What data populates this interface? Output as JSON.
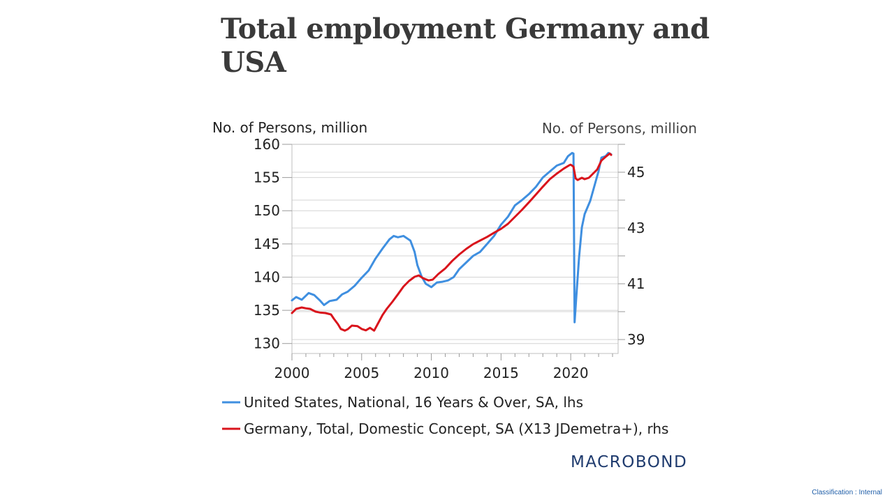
{
  "slide": {
    "title": "Total employment Germany and USA",
    "classification": "Classification : Internal"
  },
  "brand": {
    "name": "MACROBOND",
    "color": "#1f3b6e",
    "icon": "macrobond-logo"
  },
  "chart_data": {
    "type": "line",
    "title": "",
    "xlabel": "",
    "ylabel_left": "No. of Persons, million",
    "ylabel_right": "No. of Persons, million",
    "xlim": [
      2000,
      2023.4
    ],
    "ylim_left": [
      128.5,
      160
    ],
    "ylim_right": [
      38.5,
      46
    ],
    "x_ticks": [
      2000,
      2005,
      2010,
      2015,
      2020
    ],
    "y_ticks_left": [
      130,
      135,
      140,
      145,
      150,
      155,
      160
    ],
    "y_ticks_right": [
      39,
      41,
      43,
      45
    ],
    "grid": true,
    "legend_position": "bottom",
    "series": [
      {
        "name": "United States, National, 16 Years & Over, SA, lhs",
        "axis": "left",
        "color": "#3f8fe0",
        "points": [
          [
            2000.0,
            136.5
          ],
          [
            2000.3,
            137.0
          ],
          [
            2000.7,
            136.6
          ],
          [
            2001.2,
            137.6
          ],
          [
            2001.6,
            137.3
          ],
          [
            2002.0,
            136.5
          ],
          [
            2002.3,
            135.8
          ],
          [
            2002.7,
            136.4
          ],
          [
            2003.2,
            136.6
          ],
          [
            2003.6,
            137.4
          ],
          [
            2004.0,
            137.8
          ],
          [
            2004.5,
            138.7
          ],
          [
            2005.0,
            139.9
          ],
          [
            2005.5,
            141.0
          ],
          [
            2006.0,
            142.8
          ],
          [
            2006.5,
            144.3
          ],
          [
            2007.0,
            145.7
          ],
          [
            2007.3,
            146.2
          ],
          [
            2007.6,
            146.0
          ],
          [
            2008.0,
            146.2
          ],
          [
            2008.5,
            145.5
          ],
          [
            2008.8,
            143.8
          ],
          [
            2009.0,
            141.8
          ],
          [
            2009.3,
            140.1
          ],
          [
            2009.6,
            139.0
          ],
          [
            2010.0,
            138.5
          ],
          [
            2010.4,
            139.2
          ],
          [
            2010.8,
            139.3
          ],
          [
            2011.2,
            139.5
          ],
          [
            2011.6,
            140.0
          ],
          [
            2012.0,
            141.2
          ],
          [
            2012.5,
            142.2
          ],
          [
            2013.0,
            143.2
          ],
          [
            2013.5,
            143.8
          ],
          [
            2014.0,
            145.0
          ],
          [
            2014.5,
            146.2
          ],
          [
            2015.0,
            147.9
          ],
          [
            2015.5,
            149.1
          ],
          [
            2016.0,
            150.8
          ],
          [
            2016.5,
            151.6
          ],
          [
            2017.0,
            152.5
          ],
          [
            2017.5,
            153.6
          ],
          [
            2018.0,
            155.0
          ],
          [
            2018.5,
            155.9
          ],
          [
            2019.0,
            156.8
          ],
          [
            2019.5,
            157.2
          ],
          [
            2019.8,
            158.2
          ],
          [
            2020.1,
            158.7
          ],
          [
            2020.2,
            158.6
          ],
          [
            2020.28,
            133.2
          ],
          [
            2020.4,
            137.0
          ],
          [
            2020.6,
            143.0
          ],
          [
            2020.8,
            147.5
          ],
          [
            2021.0,
            149.5
          ],
          [
            2021.4,
            151.5
          ],
          [
            2021.8,
            154.5
          ],
          [
            2022.0,
            156.0
          ],
          [
            2022.2,
            158.0
          ],
          [
            2022.5,
            158.2
          ],
          [
            2022.7,
            158.7
          ],
          [
            2022.9,
            158.5
          ]
        ]
      },
      {
        "name": "Germany, Total, Domestic Concept, SA (X13 JDemetra+), rhs",
        "axis": "right",
        "color": "#d9141c",
        "points": [
          [
            2000.0,
            39.95
          ],
          [
            2000.3,
            40.1
          ],
          [
            2000.7,
            40.15
          ],
          [
            2001.0,
            40.12
          ],
          [
            2001.3,
            40.1
          ],
          [
            2001.7,
            40.0
          ],
          [
            2002.0,
            39.97
          ],
          [
            2002.4,
            39.95
          ],
          [
            2002.8,
            39.9
          ],
          [
            2003.0,
            39.75
          ],
          [
            2003.3,
            39.55
          ],
          [
            2003.5,
            39.38
          ],
          [
            2003.8,
            39.32
          ],
          [
            2004.0,
            39.37
          ],
          [
            2004.3,
            39.5
          ],
          [
            2004.7,
            39.48
          ],
          [
            2005.0,
            39.38
          ],
          [
            2005.3,
            39.33
          ],
          [
            2005.6,
            39.42
          ],
          [
            2005.9,
            39.32
          ],
          [
            2006.2,
            39.6
          ],
          [
            2006.5,
            39.88
          ],
          [
            2006.8,
            40.1
          ],
          [
            2007.2,
            40.35
          ],
          [
            2007.6,
            40.62
          ],
          [
            2008.0,
            40.9
          ],
          [
            2008.4,
            41.1
          ],
          [
            2008.8,
            41.25
          ],
          [
            2009.1,
            41.3
          ],
          [
            2009.4,
            41.2
          ],
          [
            2009.8,
            41.12
          ],
          [
            2010.1,
            41.15
          ],
          [
            2010.5,
            41.35
          ],
          [
            2011.0,
            41.55
          ],
          [
            2011.5,
            41.82
          ],
          [
            2012.0,
            42.05
          ],
          [
            2012.5,
            42.25
          ],
          [
            2013.0,
            42.42
          ],
          [
            2013.5,
            42.55
          ],
          [
            2014.0,
            42.68
          ],
          [
            2014.5,
            42.83
          ],
          [
            2015.0,
            42.97
          ],
          [
            2015.5,
            43.15
          ],
          [
            2016.0,
            43.4
          ],
          [
            2016.5,
            43.65
          ],
          [
            2017.0,
            43.92
          ],
          [
            2017.5,
            44.2
          ],
          [
            2018.0,
            44.48
          ],
          [
            2018.5,
            44.75
          ],
          [
            2019.0,
            44.95
          ],
          [
            2019.5,
            45.13
          ],
          [
            2019.9,
            45.25
          ],
          [
            2020.0,
            45.27
          ],
          [
            2020.2,
            45.2
          ],
          [
            2020.35,
            44.78
          ],
          [
            2020.5,
            44.72
          ],
          [
            2020.8,
            44.8
          ],
          [
            2021.0,
            44.75
          ],
          [
            2021.3,
            44.8
          ],
          [
            2021.6,
            44.95
          ],
          [
            2021.9,
            45.1
          ],
          [
            2022.2,
            45.42
          ],
          [
            2022.5,
            45.55
          ],
          [
            2022.8,
            45.67
          ],
          [
            2022.9,
            45.62
          ]
        ]
      }
    ]
  }
}
